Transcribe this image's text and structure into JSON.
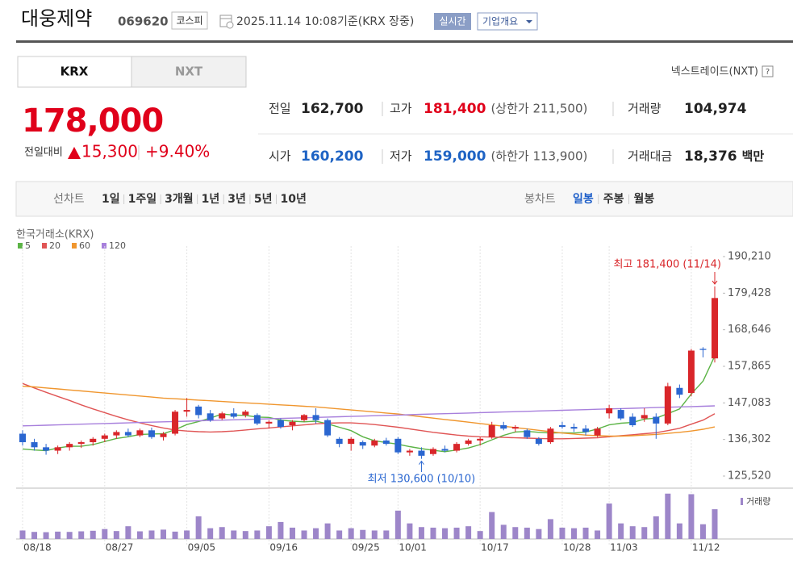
{
  "header": {
    "name": "대웅제약",
    "code": "069620",
    "market": "코스피",
    "datetime": "2025.11.14 10:08",
    "basis": "기준(KRX 장중)",
    "realtime_button": "실시간",
    "company_button": "기업개요"
  },
  "tabs": [
    "KRX",
    "NXT"
  ],
  "nxt_link": "넥스트레이드(NXT)",
  "help_icon": "?",
  "quote": {
    "price": "178,000",
    "change_label": "전일대비",
    "change": "15,300",
    "change_pct": "+9.40%"
  },
  "stats": [
    [
      {
        "label": "전일",
        "value": "162,700",
        "color": "#222"
      },
      {
        "label": "고가",
        "value": "181,400",
        "note": "(상한가 211,500)",
        "color": "#e0001a"
      },
      {
        "label": "거래량",
        "value": "104,974",
        "color": "#222"
      }
    ],
    [
      {
        "label": "시가",
        "value": "160,200",
        "color": "#1e63c4"
      },
      {
        "label": "저가",
        "value": "159,000",
        "note": "(하한가 113,900)",
        "color": "#1e63c4"
      },
      {
        "label": "거래대금",
        "value": "18,376",
        "unit": "백만",
        "color": "#222"
      }
    ]
  ],
  "periods": {
    "line_label": "선차트",
    "line": [
      "1일",
      "1주일",
      "3개월",
      "1년",
      "3년",
      "5년",
      "10년"
    ],
    "candle_label": "봉차트",
    "candle": [
      "일봉",
      "주봉",
      "월봉"
    ]
  },
  "chart_data": {
    "type": "candlestick",
    "source": "한국거래소(KRX)",
    "categories": [
      "08/18",
      null,
      null,
      null,
      null,
      null,
      null,
      "08/27",
      null,
      null,
      null,
      null,
      null,
      null,
      "09/05",
      null,
      null,
      null,
      null,
      null,
      null,
      "09/16",
      null,
      null,
      null,
      null,
      null,
      null,
      "09/25",
      null,
      null,
      null,
      "10/01",
      null,
      null,
      null,
      null,
      null,
      null,
      "10/17",
      null,
      null,
      null,
      null,
      null,
      null,
      "10/28",
      null,
      null,
      null,
      "11/03",
      null,
      null,
      null,
      null,
      null,
      null,
      "11/12",
      null,
      null
    ],
    "open": [
      138000,
      135500,
      134000,
      133000,
      134000,
      135000,
      135500,
      136500,
      137500,
      138500,
      137500,
      139000,
      137000,
      138000,
      144500,
      146000,
      144000,
      142500,
      144000,
      143500,
      143500,
      141000,
      142000,
      140500,
      142000,
      143500,
      142000,
      136500,
      135000,
      135500,
      134500,
      136000,
      136500,
      132500,
      133000,
      132000,
      133500,
      133000,
      135000,
      136000,
      137000,
      140500,
      139500,
      139000,
      136500,
      135500,
      140500,
      140000,
      139500,
      137500,
      144000,
      145000,
      143000,
      142500,
      143000,
      141000,
      151500,
      150000,
      163000,
      160200
    ],
    "high": [
      139000,
      136500,
      135000,
      134500,
      135500,
      136000,
      137000,
      138000,
      139000,
      139500,
      139500,
      139800,
      138500,
      145000,
      148500,
      146500,
      145000,
      144500,
      145500,
      145000,
      144000,
      142000,
      142500,
      142000,
      143800,
      145500,
      142500,
      137000,
      137000,
      136000,
      136500,
      136800,
      137000,
      133500,
      134000,
      134000,
      134500,
      135500,
      136500,
      137000,
      141500,
      141500,
      140500,
      139500,
      137000,
      140000,
      141500,
      141000,
      140500,
      140000,
      146500,
      145500,
      144000,
      145500,
      144000,
      153000,
      152500,
      163000,
      163500,
      181400
    ],
    "low": [
      134500,
      133000,
      131800,
      132000,
      133000,
      133800,
      134500,
      135500,
      136500,
      137000,
      137000,
      136500,
      136000,
      137500,
      143000,
      142500,
      141500,
      142000,
      142500,
      142800,
      140500,
      139500,
      139500,
      139000,
      141500,
      141000,
      137000,
      134000,
      133000,
      133500,
      134000,
      134500,
      132000,
      131500,
      130600,
      131500,
      132500,
      132500,
      134500,
      134500,
      136500,
      139000,
      138500,
      136500,
      134500,
      135000,
      139500,
      138500,
      137500,
      137000,
      142500,
      142000,
      140000,
      141500,
      136500,
      140500,
      148500,
      149000,
      160500,
      159000
    ],
    "close": [
      135500,
      134000,
      133000,
      134000,
      135000,
      135500,
      136500,
      137500,
      138500,
      137500,
      139000,
      137000,
      138000,
      144500,
      145000,
      143500,
      142000,
      144000,
      143000,
      144500,
      141000,
      141500,
      140000,
      141500,
      143500,
      142000,
      137500,
      135000,
      136500,
      134500,
      136000,
      135000,
      132500,
      133000,
      131500,
      133500,
      133000,
      135000,
      136000,
      136500,
      140500,
      139500,
      140000,
      137000,
      135000,
      139500,
      140000,
      139500,
      138500,
      139500,
      145500,
      142500,
      140500,
      143500,
      141000,
      152000,
      149500,
      162500,
      162700,
      178000
    ],
    "up_color": "#d9262a",
    "down_color": "#2a66d0",
    "series": [
      {
        "name": "5",
        "color": "#5cb446",
        "values": [
          133500,
          133200,
          133000,
          133800,
          134300,
          134300,
          134800,
          135700,
          136600,
          137100,
          137800,
          137900,
          138000,
          139200,
          140700,
          141600,
          142600,
          143800,
          143500,
          143400,
          142900,
          142800,
          142000,
          141700,
          141500,
          141700,
          140900,
          139900,
          138900,
          137100,
          135900,
          135400,
          134900,
          134200,
          133600,
          133100,
          132700,
          133200,
          133800,
          134800,
          136200,
          137500,
          138500,
          138700,
          138400,
          138200,
          138300,
          138200,
          138500,
          139400,
          140600,
          141100,
          141300,
          142300,
          142600,
          143900,
          145300,
          149700,
          153500,
          160900
        ]
      },
      {
        "name": "20",
        "color": "#e05555",
        "values": [
          152800,
          151500,
          150200,
          149000,
          147800,
          146500,
          145300,
          144200,
          143100,
          142100,
          141200,
          140400,
          139700,
          139100,
          138800,
          138600,
          138500,
          138600,
          138800,
          139100,
          139400,
          139700,
          140000,
          140300,
          140600,
          140900,
          141100,
          141200,
          141200,
          141000,
          140700,
          140300,
          139900,
          139400,
          138900,
          138400,
          138000,
          137600,
          137300,
          137100,
          137000,
          136900,
          136800,
          136700,
          136600,
          136500,
          136500,
          136600,
          136700,
          136800,
          137100,
          137400,
          137700,
          138000,
          138300,
          138900,
          139600,
          140800,
          142000,
          143900
        ]
      },
      {
        "name": "60",
        "color": "#f0962e",
        "values": [
          152000,
          151800,
          151500,
          151200,
          150900,
          150600,
          150300,
          150000,
          149700,
          149400,
          149100,
          148800,
          148500,
          148300,
          148100,
          147900,
          147700,
          147500,
          147300,
          147100,
          146900,
          146700,
          146500,
          146300,
          146100,
          145900,
          145600,
          145300,
          145000,
          144700,
          144400,
          144100,
          143800,
          143400,
          143000,
          142600,
          142200,
          141800,
          141400,
          141000,
          140600,
          140200,
          139800,
          139400,
          139000,
          138600,
          138200,
          137900,
          137600,
          137400,
          137300,
          137300,
          137400,
          137600,
          137800,
          138100,
          138400,
          138800,
          139300,
          140000
        ]
      },
      {
        "name": "120",
        "color": "#a77fdc",
        "values": [
          140300,
          140400,
          140500,
          140600,
          140700,
          140800,
          140900,
          141000,
          141100,
          141200,
          141300,
          141400,
          141500,
          141600,
          141700,
          141800,
          141900,
          142000,
          142100,
          142200,
          142300,
          142400,
          142500,
          142600,
          142700,
          142800,
          142900,
          143000,
          143100,
          143200,
          143300,
          143400,
          143500,
          143600,
          143700,
          143800,
          143900,
          144000,
          144100,
          144200,
          144300,
          144400,
          144500,
          144600,
          144700,
          144800,
          144900,
          145000,
          145100,
          145200,
          145300,
          145400,
          145500,
          145600,
          145700,
          145800,
          145900,
          146000,
          146100,
          146200
        ]
      }
    ],
    "ylim": [
      121950,
      193300
    ],
    "yticks": [
      {
        "value": 190210,
        "label": "190,210"
      },
      {
        "value": 179428,
        "label": "179,428"
      },
      {
        "value": 168646,
        "label": "168,646"
      },
      {
        "value": 157865,
        "label": "157,865"
      },
      {
        "value": 147083,
        "label": "147,083"
      },
      {
        "value": 136302,
        "label": "136,302"
      },
      {
        "value": 125520,
        "label": "125,520"
      }
    ],
    "volume": {
      "name": "거래량",
      "color": "#9d86c9",
      "ylim": [
        0,
        165000
      ],
      "values": [
        30000,
        25000,
        24000,
        26000,
        25000,
        27000,
        29000,
        35000,
        28000,
        45000,
        27000,
        30000,
        33000,
        26000,
        30000,
        80000,
        38000,
        42000,
        30000,
        28000,
        30000,
        45000,
        60000,
        40000,
        30000,
        38000,
        55000,
        30000,
        38000,
        32000,
        30000,
        30000,
        100000,
        55000,
        42000,
        40000,
        38000,
        40000,
        45000,
        28000,
        95000,
        50000,
        42000,
        40000,
        35000,
        70000,
        40000,
        38000,
        40000,
        30000,
        125000,
        55000,
        45000,
        42000,
        80000,
        160000,
        55000,
        158000,
        52000,
        104974
      ]
    },
    "annotations": {
      "high": "최고 181,400 (11/14)",
      "low": "최저 130,600 (10/10)"
    }
  }
}
